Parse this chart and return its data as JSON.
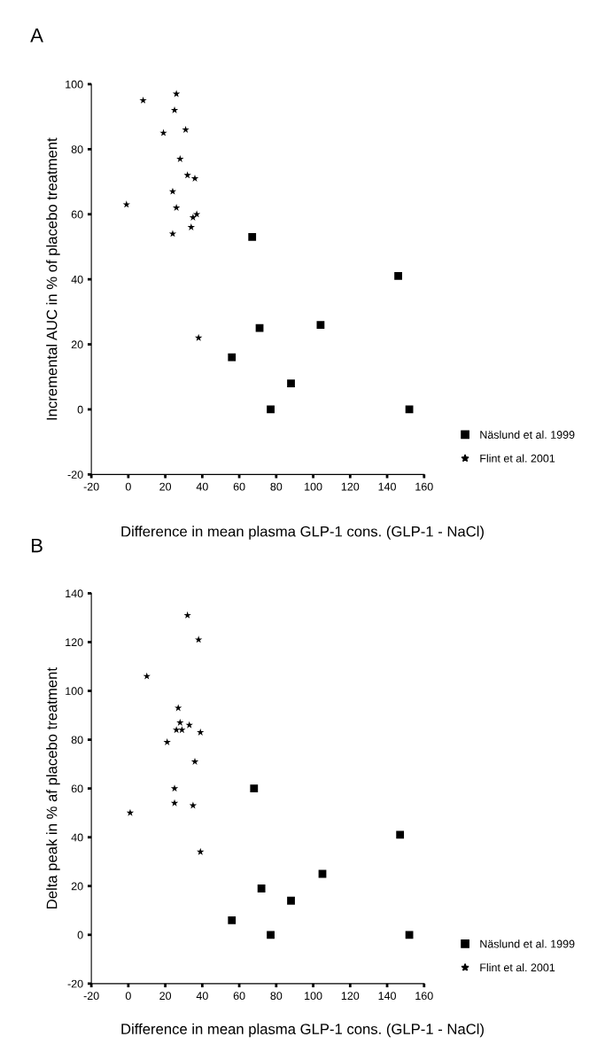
{
  "chart_data": [
    {
      "type": "scatter",
      "xlabel": "Difference in mean plasma GLP-1 cons. (GLP-1 - NaCl)",
      "ylabel": "Incremental AUC in % of placebo treatment",
      "annotations": [
        "A"
      ],
      "xlim": [
        -20,
        160
      ],
      "xticks": [
        -20,
        0,
        20,
        40,
        60,
        80,
        100,
        120,
        140,
        160
      ],
      "ylim": [
        -20,
        100
      ],
      "yticks": [
        -20,
        0,
        20,
        40,
        60,
        80,
        100
      ],
      "grid": false,
      "legend": "bottom right",
      "series": [
        {
          "name": "Näslund et al. 1999",
          "color": "#000000",
          "marker": "square",
          "x": [
            67,
            146,
            71,
            104,
            56,
            88,
            77,
            152
          ],
          "values": [
            53,
            41,
            25,
            26,
            16,
            8,
            0,
            0
          ]
        },
        {
          "name": "Flint et al. 2001",
          "color": "#000000",
          "marker": "star",
          "x": [
            8,
            26,
            25,
            19,
            31,
            28,
            32,
            36,
            24,
            -1,
            26,
            35,
            37,
            34,
            24,
            38
          ],
          "values": [
            95,
            97,
            92,
            85,
            86,
            77,
            72,
            71,
            67,
            63,
            62,
            59,
            60,
            56,
            54,
            22
          ]
        }
      ]
    },
    {
      "type": "scatter",
      "xlabel": "Difference in mean plasma GLP-1 cons. (GLP-1 - NaCl)",
      "ylabel": "Delta peak in % af placebo treatment",
      "annotations": [
        "B"
      ],
      "xlim": [
        -20,
        160
      ],
      "xticks": [
        -20,
        0,
        20,
        40,
        60,
        80,
        100,
        120,
        140,
        160
      ],
      "ylim": [
        -20,
        140
      ],
      "yticks": [
        -20,
        0,
        20,
        40,
        60,
        80,
        100,
        120,
        140
      ],
      "grid": false,
      "legend": "bottom right",
      "series": [
        {
          "name": "Näslund et al. 1999",
          "color": "#000000",
          "marker": "square",
          "x": [
            68,
            147,
            105,
            72,
            88,
            56,
            77,
            152
          ],
          "values": [
            60,
            41,
            25,
            19,
            14,
            6,
            0,
            0
          ]
        },
        {
          "name": "Flint et al. 2001",
          "color": "#000000",
          "marker": "star",
          "x": [
            32,
            38,
            10,
            27,
            28,
            33,
            26,
            29,
            39,
            21,
            36,
            25,
            25,
            35,
            1,
            39
          ],
          "values": [
            131,
            121,
            106,
            93,
            87,
            86,
            84,
            84,
            83,
            79,
            71,
            60,
            54,
            53,
            50,
            34
          ]
        }
      ]
    }
  ]
}
